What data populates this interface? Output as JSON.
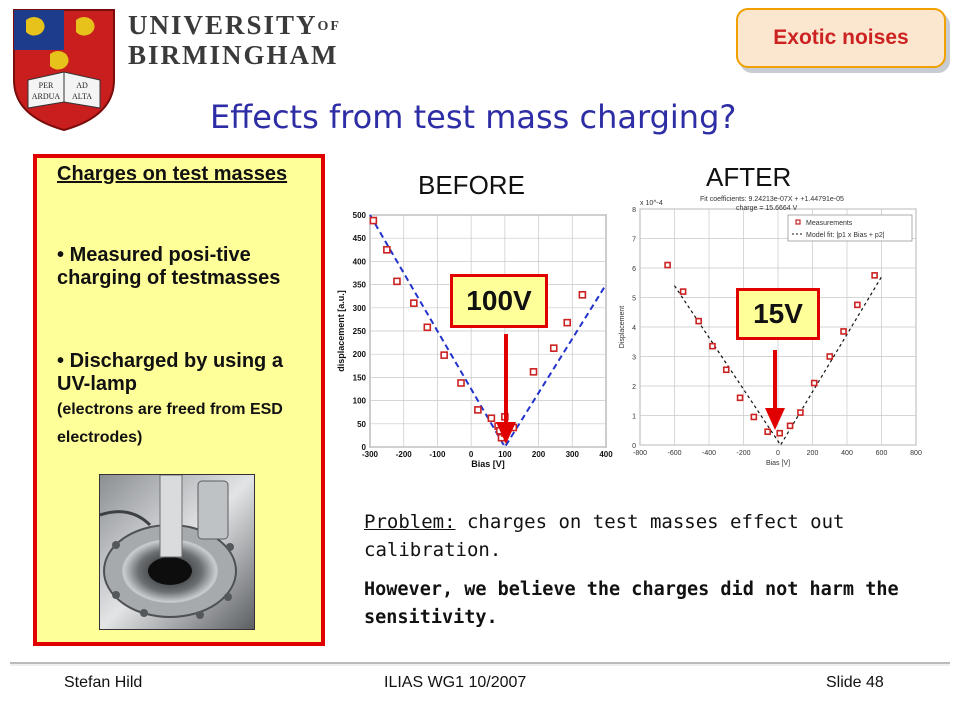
{
  "header": {
    "university_line1": "UNIVERSITY",
    "university_of": "OF",
    "university_line2": "BIRMINGHAM",
    "crest_mottos": [
      "PER",
      "AD",
      "ARDUA",
      "ALTA"
    ],
    "topic_badge": "Exotic noises",
    "slide_title": "Effects from test mass charging?"
  },
  "left_panel": {
    "heading": "Charges on test masses",
    "bullet_1": "Measured  posi-tive charging of testmasses",
    "bullet_2_main": "Discharged by using a UV-lamp",
    "bullet_2_note": "(electrons are freed from ESD electrodes)",
    "photo": "uv-lamp-vacuum-chamber-photo"
  },
  "plots": {
    "before_caption": "BEFORE",
    "after_caption": "AFTER",
    "before_voltage": "100V",
    "after_voltage": "15V"
  },
  "chart_data": [
    {
      "type": "scatter",
      "xlabel": "Bias [V]",
      "ylabel": "displacement [a.u.]",
      "xlim": [
        -300,
        400
      ],
      "ylim": [
        0,
        500
      ],
      "x_ticks": [
        "-300",
        "-200",
        "-100",
        "0",
        "100",
        "200",
        "300",
        "400"
      ],
      "y_ticks": [
        "0",
        "50",
        "100",
        "150",
        "200",
        "250",
        "300",
        "350",
        "400",
        "450",
        "500"
      ],
      "grid": true,
      "series": [
        {
          "points": [
            [
              -290,
              488
            ],
            [
              -250,
              425
            ],
            [
              -220,
              357
            ],
            [
              -170,
              310
            ],
            [
              -130,
              258
            ],
            [
              -80,
              198
            ],
            [
              -30,
              138
            ],
            [
              20,
              80
            ],
            [
              60,
              62
            ],
            [
              80,
              45
            ],
            [
              85,
              35
            ],
            [
              90,
              20
            ],
            [
              100,
              30
            ],
            [
              100,
              65
            ],
            [
              125,
              42
            ],
            [
              185,
              162
            ],
            [
              245,
              213
            ],
            [
              285,
              268
            ],
            [
              330,
              328
            ]
          ]
        },
        {
          "line": [
            [
              -300,
              500
            ],
            [
              100,
              0
            ],
            [
              400,
              350
            ]
          ]
        }
      ],
      "color_markers": "#cc2222",
      "color_fit": "#2233cc"
    },
    {
      "type": "scatter",
      "xlabel": "Bias [V]",
      "ylabel": "Displacement",
      "xlim": [
        -800,
        800
      ],
      "ylim": [
        0,
        8
      ],
      "x_ticks": [
        "-800",
        "-600",
        "-400",
        "-200",
        "0",
        "200",
        "400",
        "600",
        "800"
      ],
      "y_ticks": [
        "0",
        "1",
        "2",
        "3",
        "4",
        "5",
        "6",
        "7",
        "8"
      ],
      "y_exponent": "x 10^-4",
      "grid": true,
      "fit_info": [
        "Fit coefficients: 9.24213e-07X + +1.44791e-05",
        "charge = 15.6664 V"
      ],
      "legend": [
        "Measurements",
        "Model fit: |p1 x Bias + p2|"
      ],
      "series": [
        {
          "points": [
            [
              -640,
              6.1
            ],
            [
              -550,
              5.2
            ],
            [
              -460,
              4.2
            ],
            [
              -380,
              3.35
            ],
            [
              -300,
              2.55
            ],
            [
              -220,
              1.6
            ],
            [
              -140,
              0.95
            ],
            [
              -60,
              0.45
            ],
            [
              10,
              0.4
            ],
            [
              70,
              0.65
            ],
            [
              130,
              1.1
            ],
            [
              210,
              2.1
            ],
            [
              300,
              3.0
            ],
            [
              380,
              3.85
            ],
            [
              460,
              4.75
            ],
            [
              560,
              5.75
            ]
          ]
        },
        {
          "line": [
            [
              -600,
              5.4
            ],
            [
              15,
              0
            ],
            [
              600,
              5.7
            ]
          ]
        }
      ],
      "color_markers": "#cc2222",
      "color_fit": "#111111"
    }
  ],
  "problem": {
    "label": "Problem:",
    "text": " charges on test masses effect out calibration.",
    "belief": "However, we believe the charges did not harm the sensitivity."
  },
  "footer": {
    "author": "Stefan Hild",
    "event": "ILIAS WG1 10/2007",
    "slide": "Slide 48"
  }
}
